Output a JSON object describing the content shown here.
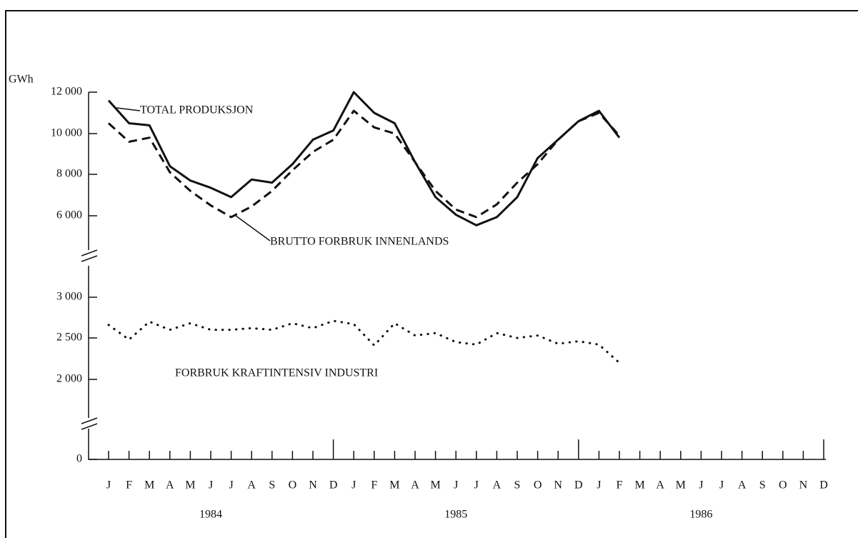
{
  "chart_data": {
    "type": "line",
    "y_label": "GWh",
    "categories": [
      "J",
      "F",
      "M",
      "A",
      "M",
      "J",
      "J",
      "A",
      "S",
      "O",
      "N",
      "D",
      "J",
      "F",
      "M",
      "A",
      "M",
      "J",
      "J",
      "A",
      "S",
      "O",
      "N",
      "D",
      "J",
      "F",
      "M",
      "A",
      "M",
      "J",
      "J",
      "A",
      "S",
      "O",
      "N",
      "D"
    ],
    "years": [
      "1984",
      "1985",
      "1986"
    ],
    "ylim": [
      0,
      12000
    ],
    "yticks": [
      {
        "value": 12000,
        "label": "12 000"
      },
      {
        "value": 10000,
        "label": "10 000"
      },
      {
        "value": 8000,
        "label": "8 000"
      },
      {
        "value": 6000,
        "label": "6 000"
      },
      {
        "value": 3000,
        "label": "3 000"
      },
      {
        "value": 2500,
        "label": "2 500"
      },
      {
        "value": 2000,
        "label": "2 000"
      },
      0
    ],
    "series": [
      {
        "name": "TOTAL PRODUKSJON",
        "color": "#111111",
        "style": "solid",
        "values": [
          11600,
          10500,
          10400,
          8400,
          7700,
          7350,
          6900,
          7750,
          7600,
          8500,
          9700,
          10150,
          12000,
          11000,
          10500,
          8600,
          6900,
          6050,
          5650,
          5950,
          6900,
          8800,
          9700,
          10600,
          11100,
          9800,
          null,
          null,
          null,
          null,
          null,
          null,
          null,
          null,
          null,
          null
        ]
      },
      {
        "name": "BRUTTO FORBRUK INNENLANDS",
        "color": "#111111",
        "style": "dashed",
        "values": [
          10500,
          9600,
          9800,
          8100,
          7200,
          6500,
          5950,
          6450,
          7200,
          8200,
          9100,
          9700,
          11100,
          10300,
          10000,
          8600,
          7200,
          6300,
          5950,
          6550,
          7600,
          8500,
          9700,
          10600,
          11000,
          9900,
          null,
          null,
          null,
          null,
          null,
          null,
          null,
          null,
          null,
          null
        ]
      },
      {
        "name": "FORBRUK KRAFTINTENSIV INDUSTRI",
        "color": "#111111",
        "style": "dotted",
        "values": [
          2660,
          2480,
          2700,
          2600,
          2680,
          2600,
          2600,
          2620,
          2600,
          2680,
          2620,
          2710,
          2670,
          2410,
          2680,
          2530,
          2560,
          2450,
          2420,
          2560,
          2500,
          2530,
          2430,
          2460,
          2420,
          2200,
          null,
          null,
          null,
          null,
          null,
          null,
          null,
          null,
          null,
          null
        ]
      }
    ]
  }
}
